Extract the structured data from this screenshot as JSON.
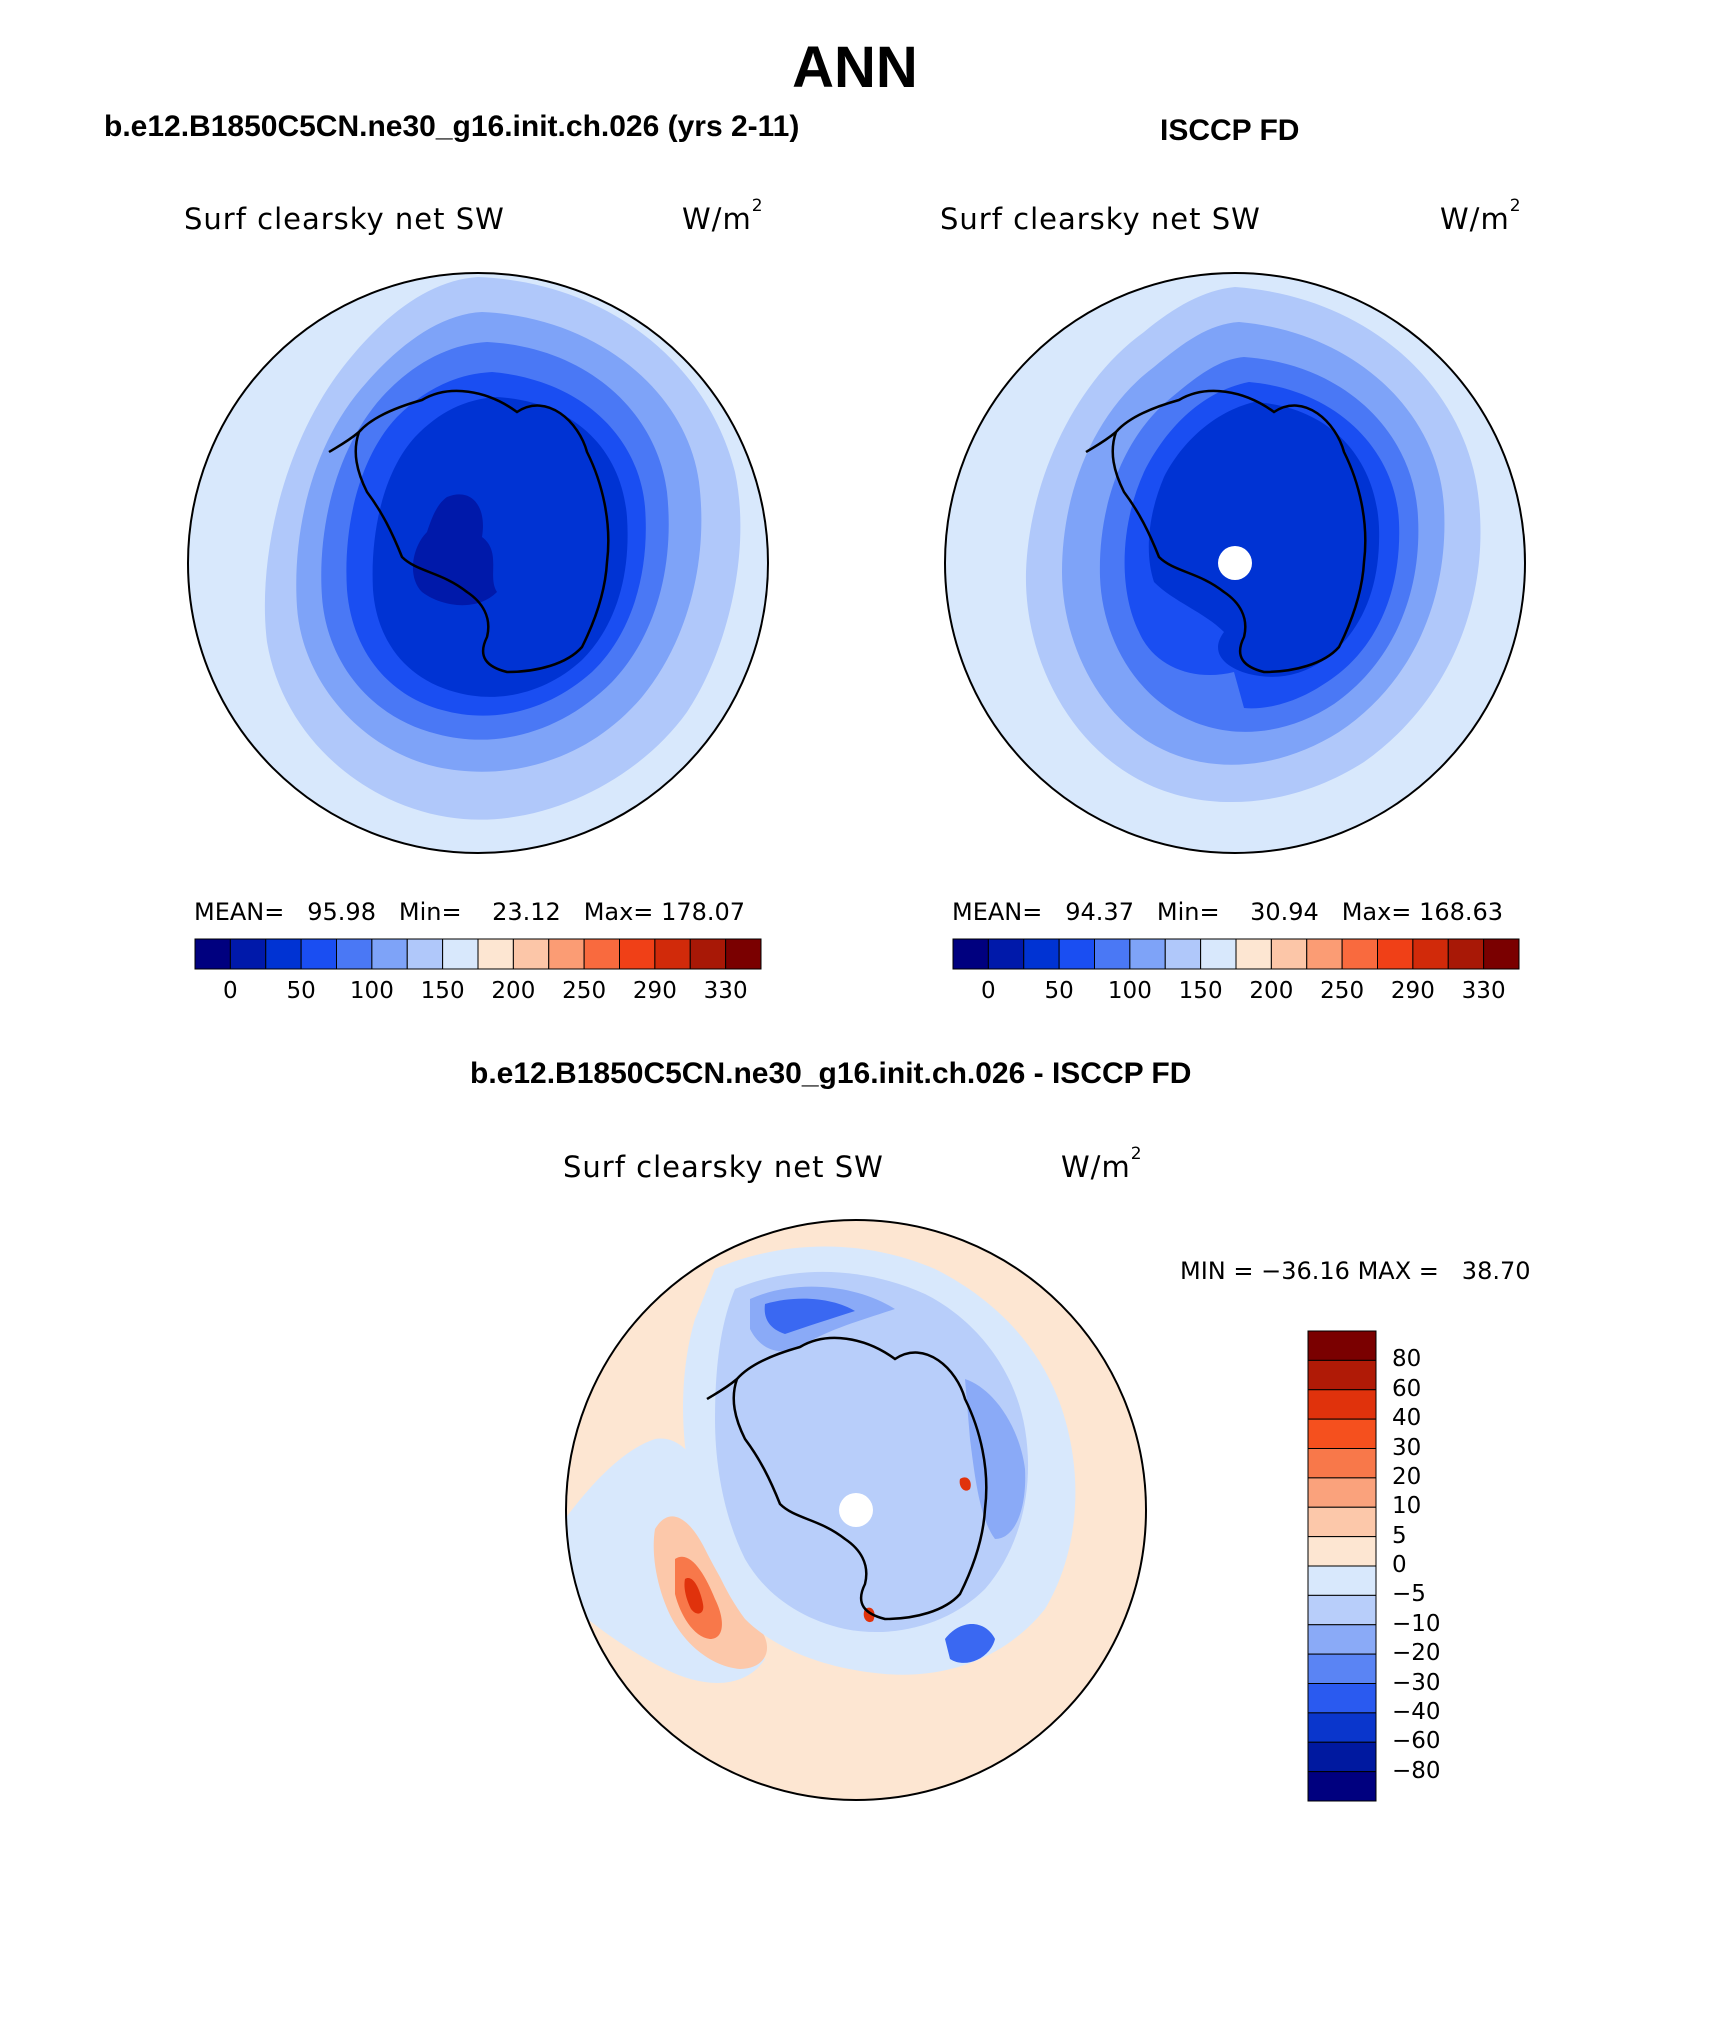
{
  "title": "ANN",
  "panels": [
    {
      "id": "model",
      "title": "b.e12.B1850C5CN.ne30_g16.init.ch.026 (yrs 2-11)",
      "variable_label": "Surf clearsky net SW",
      "units": "W/m",
      "units_exp": "2",
      "stats": {
        "mean_label": "MEAN=",
        "mean": "95.98",
        "min_label": "Min=",
        "min": "23.12",
        "max_label": "Max=",
        "max": "178.07"
      }
    },
    {
      "id": "obs",
      "title": "ISCCP FD",
      "variable_label": "Surf clearsky net SW",
      "units": "W/m",
      "units_exp": "2",
      "stats": {
        "mean_label": "MEAN=",
        "mean": "94.37",
        "min_label": "Min=",
        "min": "30.94",
        "max_label": "Max=",
        "max": "168.63"
      }
    }
  ],
  "abs_colorbar": {
    "colors": [
      "#00007f",
      "#0019aa",
      "#0033d3",
      "#1a4ef2",
      "#4a78f5",
      "#7ea3f8",
      "#b0c8fa",
      "#d8e8fc",
      "#fde6d2",
      "#fcc6a8",
      "#fb9c74",
      "#f96a3e",
      "#f04017",
      "#d12a0a",
      "#a81806",
      "#7a0000"
    ],
    "tick_labels": [
      "0",
      "50",
      "100",
      "150",
      "200",
      "250",
      "290",
      "330"
    ]
  },
  "diff_panel": {
    "title": "b.e12.B1850C5CN.ne30_g16.init.ch.026 - ISCCP FD",
    "variable_label": "Surf clearsky net SW",
    "units": "W/m",
    "units_exp": "2",
    "stats": {
      "min_label": "MIN =",
      "min": "−36.16",
      "max_label": "MAX =",
      "max": "38.70"
    }
  },
  "diff_colorbar": {
    "colors_top_to_bottom": [
      "#7a0000",
      "#b01a06",
      "#e0320c",
      "#f5501e",
      "#f8784a",
      "#faa27c",
      "#fcc8aa",
      "#fde6d2",
      "#d8e8fc",
      "#b8cefa",
      "#8aaaf7",
      "#5a84f4",
      "#2a5af0",
      "#0a36cc",
      "#0019a0",
      "#00007f"
    ],
    "tick_labels": [
      "80",
      "60",
      "40",
      "30",
      "20",
      "10",
      "5",
      "0",
      "−5",
      "−10",
      "−20",
      "−30",
      "−40",
      "−60",
      "−80"
    ]
  },
  "map_palette": {
    "abs_levels_outer_to_inner": [
      "#d8e8fc",
      "#b0c8fa",
      "#7ea3f8",
      "#4a78f5",
      "#1a4ef2",
      "#0033d3",
      "#0019aa"
    ],
    "diff_colors": {
      "ocean": "#fde6d2",
      "near_zero": "#d8e8fc",
      "neg_small": "#b8cefa",
      "neg_mid": "#8aaaf7",
      "neg_large": "#3a68f2",
      "pos_small": "#fcc8aa",
      "pos_mid": "#f8784a",
      "pos_large": "#e0320c"
    }
  }
}
